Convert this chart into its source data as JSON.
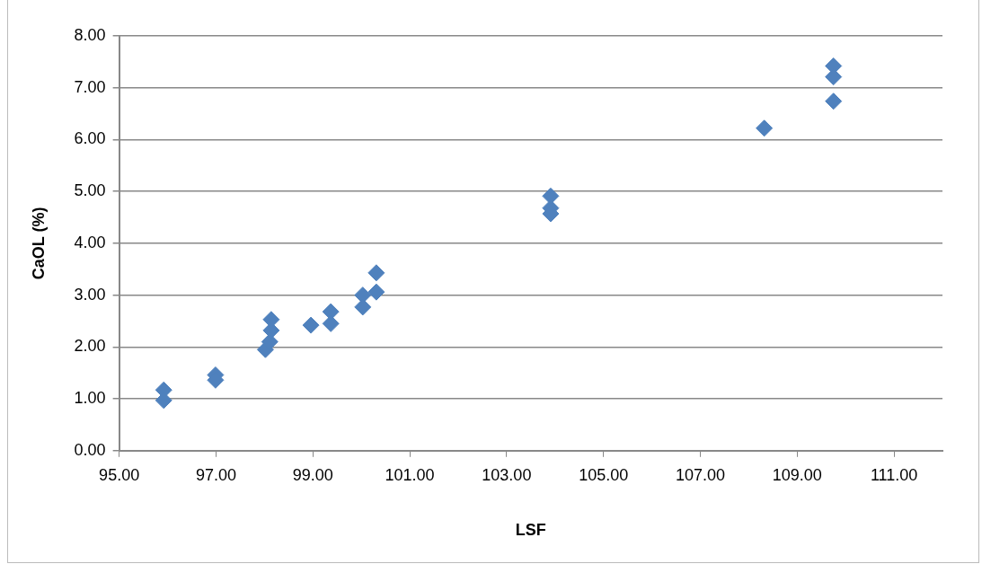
{
  "chart_data": {
    "type": "scatter",
    "xlabel": "LSF",
    "ylabel": "CaOL (%)",
    "x": [
      95.92,
      95.92,
      96.99,
      96.99,
      98.02,
      98.11,
      98.14,
      98.14,
      98.96,
      99.37,
      99.37,
      100.03,
      100.03,
      100.31,
      100.31,
      103.91,
      103.91,
      103.91,
      108.32,
      109.75,
      109.75,
      109.75
    ],
    "series": [
      {
        "color": "#4f81bd",
        "values": [
          1.17,
          0.97,
          1.46,
          1.36,
          1.95,
          2.1,
          2.32,
          2.53,
          2.42,
          2.68,
          2.45,
          3.0,
          2.77,
          3.43,
          3.06,
          4.91,
          4.68,
          4.57,
          6.22,
          7.42,
          7.21,
          6.74
        ]
      }
    ],
    "xlim": [
      95,
      112
    ],
    "xticks": [
      {
        "value": 95,
        "label": "95.00"
      },
      {
        "value": 97,
        "label": "97.00"
      },
      {
        "value": 99,
        "label": "99.00"
      },
      {
        "value": 101,
        "label": "101.00"
      },
      {
        "value": 103,
        "label": "103.00"
      },
      {
        "value": 105,
        "label": "105.00"
      },
      {
        "value": 107,
        "label": "107.00"
      },
      {
        "value": 109,
        "label": "109.00"
      },
      {
        "value": 111,
        "label": "111.00"
      }
    ],
    "ylim": [
      0,
      8
    ],
    "yticks": [
      {
        "value": 0,
        "label": "0.00"
      },
      {
        "value": 1,
        "label": "1.00"
      },
      {
        "value": 2,
        "label": "2.00"
      },
      {
        "value": 3,
        "label": "3.00"
      },
      {
        "value": 4,
        "label": "4.00"
      },
      {
        "value": 5,
        "label": "5.00"
      },
      {
        "value": 6,
        "label": "6.00"
      },
      {
        "value": 7,
        "label": "7.00"
      },
      {
        "value": 8,
        "label": "8.00"
      }
    ],
    "grid": "y",
    "legend": false,
    "marker": "diamond"
  }
}
